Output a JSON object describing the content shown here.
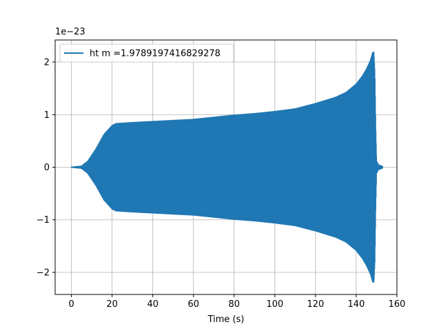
{
  "chart_data": {
    "type": "line",
    "title": "",
    "xlabel": "Time (s)",
    "ylabel": "",
    "y_offset_label": "1e−23",
    "xlim": [
      -8,
      160
    ],
    "ylim": [
      -2.42,
      2.42
    ],
    "x_ticks": [
      0,
      20,
      40,
      60,
      80,
      100,
      120,
      140,
      160
    ],
    "y_ticks": [
      -2,
      -1,
      0,
      1,
      2
    ],
    "x_tick_labels": [
      "0",
      "20",
      "40",
      "60",
      "80",
      "100",
      "120",
      "140",
      "160"
    ],
    "y_tick_labels": [
      "−2",
      "−1",
      "0",
      "1",
      "2"
    ],
    "grid": true,
    "legend_position": "upper left",
    "series": [
      {
        "name": "ht m =1.9789197416829278",
        "color": "#1f77b4",
        "envelope_upper": {
          "x": [
            0,
            5,
            8,
            12,
            16,
            20,
            22,
            30,
            40,
            50,
            60,
            70,
            80,
            90,
            100,
            110,
            120,
            130,
            135,
            140,
            143,
            145,
            147,
            148,
            148.7,
            149.2,
            149.6,
            150,
            151,
            152,
            153
          ],
          "y": [
            0.01,
            0.03,
            0.12,
            0.35,
            0.63,
            0.8,
            0.84,
            0.86,
            0.88,
            0.9,
            0.92,
            0.96,
            1.0,
            1.03,
            1.07,
            1.12,
            1.22,
            1.34,
            1.43,
            1.59,
            1.74,
            1.87,
            2.04,
            2.18,
            2.2,
            1.8,
            0.8,
            0.12,
            0.05,
            0.04,
            0.02
          ]
        },
        "envelope_lower": {
          "x": [
            0,
            5,
            8,
            12,
            16,
            20,
            22,
            30,
            40,
            50,
            60,
            70,
            80,
            90,
            100,
            110,
            120,
            130,
            135,
            140,
            143,
            145,
            147,
            148,
            148.7,
            149.2,
            149.6,
            150,
            151,
            152,
            153
          ],
          "y": [
            -0.01,
            -0.03,
            -0.12,
            -0.35,
            -0.63,
            -0.8,
            -0.84,
            -0.86,
            -0.88,
            -0.9,
            -0.92,
            -0.96,
            -1.0,
            -1.03,
            -1.07,
            -1.12,
            -1.22,
            -1.34,
            -1.43,
            -1.59,
            -1.74,
            -1.87,
            -2.04,
            -2.18,
            -2.2,
            -1.8,
            -0.8,
            -0.12,
            -0.05,
            -0.04,
            -0.02
          ]
        }
      }
    ]
  }
}
